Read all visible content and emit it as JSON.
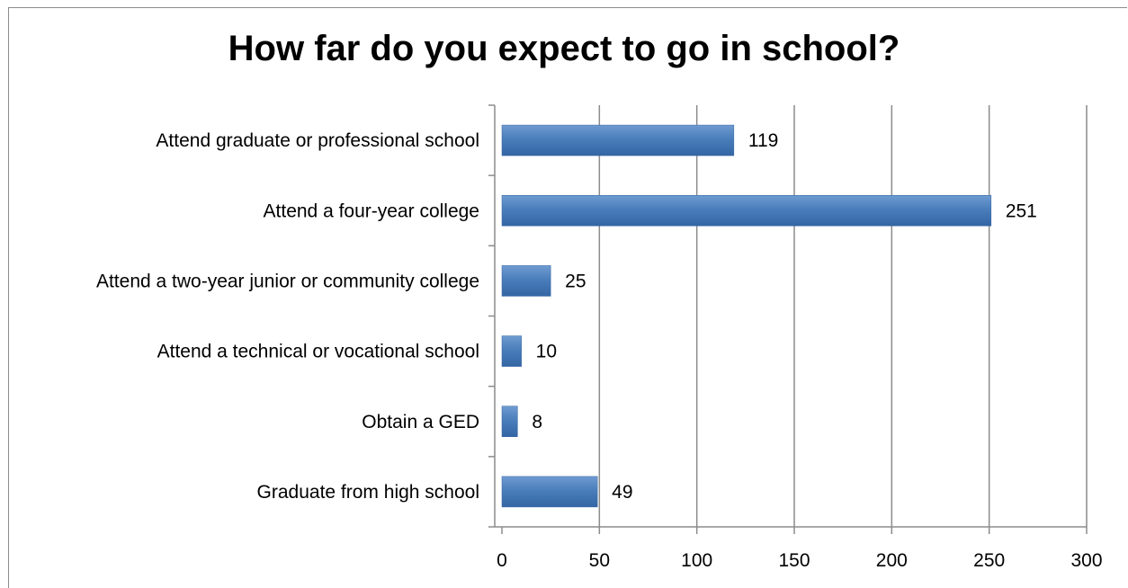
{
  "chart_data": {
    "type": "bar",
    "orientation": "horizontal",
    "title": "How far do you expect to go in school?",
    "categories": [
      "Attend graduate or professional school",
      "Attend a four-year college",
      "Attend a two-year junior or community college",
      "Attend a technical or vocational school",
      "Obtain a GED",
      "Graduate from high school"
    ],
    "values": [
      119,
      251,
      25,
      10,
      8,
      49
    ],
    "xlim": [
      0,
      300
    ],
    "xticks": [
      0,
      50,
      100,
      150,
      200,
      250,
      300
    ],
    "grid": true,
    "legend": "none",
    "data_labels": true,
    "colors": {
      "bar": "#4a7ebb",
      "bar_dark": "#3465a4",
      "bar_light": "#6f9bd1",
      "grid": "#8c8c8c"
    }
  }
}
